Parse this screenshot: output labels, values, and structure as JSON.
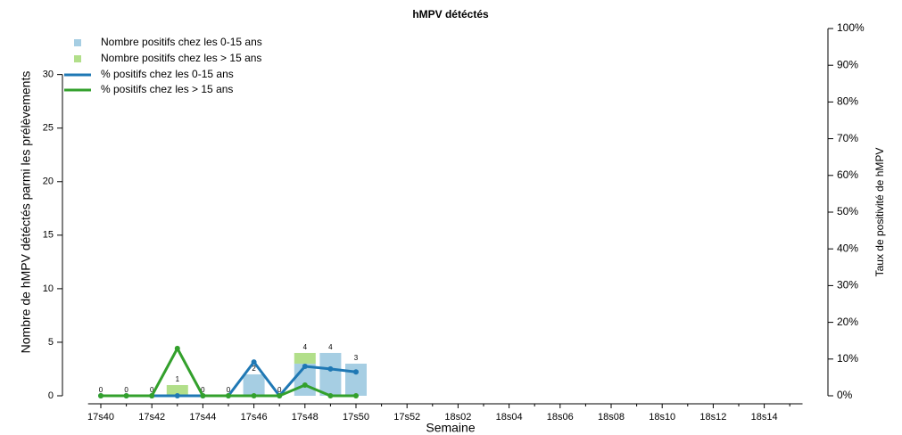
{
  "chart_data": {
    "type": "combo",
    "title": "hMPV détéctés",
    "x_label": "Semaine",
    "y_label": "Nombre de hMPV détéctés parmi les prélèvements",
    "y2_label": "Taux de positivité de hMPV",
    "stacked": true,
    "legend": "top-left",
    "categories": [
      "17s40",
      null,
      "17s42",
      null,
      "17s44",
      null,
      "17s46",
      null,
      "17s48",
      null,
      "17s50",
      null,
      "17s52",
      null,
      "18s02",
      null,
      "18s04",
      null,
      "18s06",
      null,
      "18s08",
      null,
      "18s10",
      null,
      "18s12",
      null,
      "18s14",
      null
    ],
    "series": [
      {
        "name": "Nombre positifs chez les 0-15 ans",
        "type": "bar",
        "axis": "y",
        "color": "#a6cee3",
        "values": [
          0,
          0,
          0,
          0,
          0,
          0,
          2,
          0,
          3,
          4,
          3,
          null,
          null,
          null,
          null,
          null,
          null,
          null,
          null,
          null,
          null,
          null,
          null,
          null,
          null,
          null,
          null,
          null
        ]
      },
      {
        "name": "Nombre positifs chez les > 15 ans",
        "type": "bar",
        "axis": "y",
        "color": "#b2df8a",
        "values": [
          0,
          0,
          0,
          1,
          0,
          0,
          0,
          0,
          1,
          0,
          0,
          null,
          null,
          null,
          null,
          null,
          null,
          null,
          null,
          null,
          null,
          null,
          null,
          null,
          null,
          null,
          null,
          null
        ]
      },
      {
        "name": "% positifs chez les 0-15 ans",
        "type": "line",
        "axis": "y2",
        "color": "#1f78b4",
        "values": [
          0,
          0,
          0,
          0,
          0,
          0,
          9.2,
          0,
          8,
          7.3,
          6.5,
          null,
          null,
          null,
          null,
          null,
          null,
          null,
          null,
          null,
          null,
          null,
          null,
          null,
          null,
          null,
          null,
          null
        ]
      },
      {
        "name": "% positifs chez les > 15 ans",
        "type": "line",
        "axis": "y2",
        "color": "#33a02c",
        "values": [
          0,
          0,
          0,
          12.9,
          0,
          0,
          0,
          0,
          2.9,
          0,
          0,
          null,
          null,
          null,
          null,
          null,
          null,
          null,
          null,
          null,
          null,
          null,
          null,
          null,
          null,
          null,
          null,
          null
        ]
      }
    ],
    "totals": [
      0,
      0,
      0,
      1,
      0,
      0,
      2,
      0,
      4,
      4,
      3,
      null,
      null,
      null,
      null,
      null,
      null,
      null,
      null,
      null,
      null,
      null,
      null,
      null,
      null,
      null,
      null,
      null
    ],
    "ylim": [
      0,
      34.3
    ],
    "yticks": [
      0,
      5,
      10,
      15,
      20,
      25,
      30
    ],
    "y2lim": [
      0,
      100
    ],
    "y2ticks": [
      {
        "value": 0,
        "label": "0%"
      },
      {
        "value": 10,
        "label": "10%"
      },
      {
        "value": 20,
        "label": "20%"
      },
      {
        "value": 30,
        "label": "30%"
      },
      {
        "value": 40,
        "label": "40%"
      },
      {
        "value": 50,
        "label": "50%"
      },
      {
        "value": 60,
        "label": "60%"
      },
      {
        "value": 70,
        "label": "70%"
      },
      {
        "value": 80,
        "label": "80%"
      },
      {
        "value": 90,
        "label": "90%"
      },
      {
        "value": 100,
        "label": "100%"
      }
    ]
  }
}
